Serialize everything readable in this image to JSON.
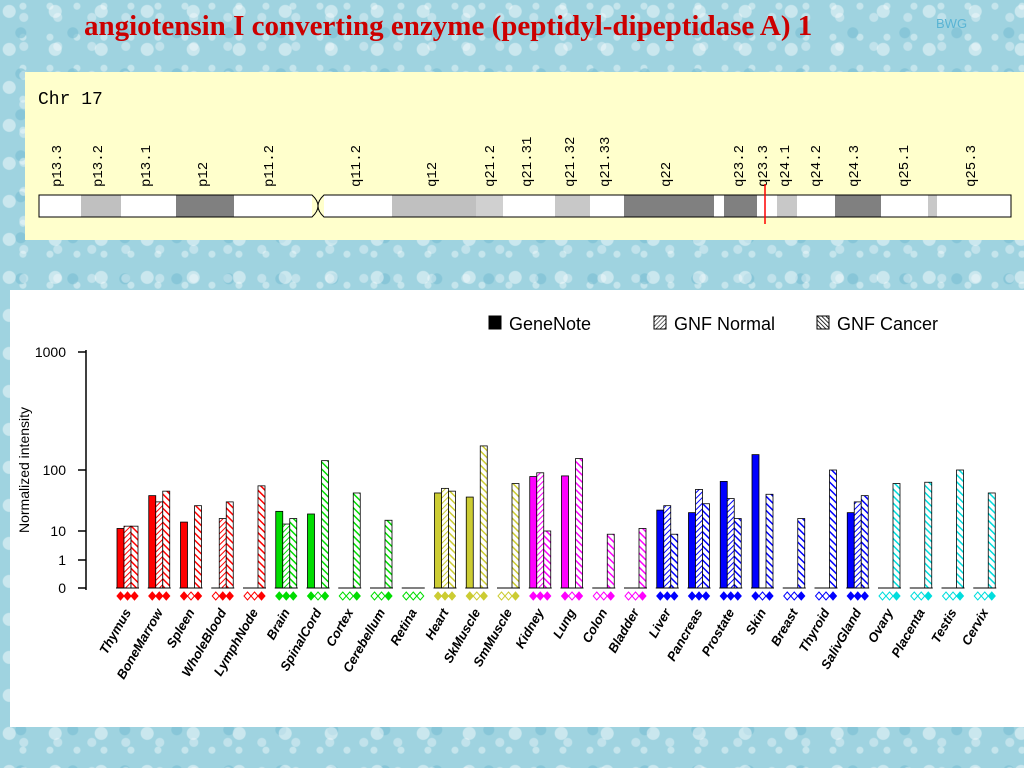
{
  "title": "angiotensin I converting enzyme (peptidyl-dipeptidase A) 1",
  "title_tag": "BWG",
  "chromosome": {
    "label": "Chr 17",
    "bands": [
      {
        "name": "p13.3",
        "x0": 39,
        "x1": 81,
        "shade": "#ffffff"
      },
      {
        "name": "p13.2",
        "x0": 81,
        "x1": 121,
        "shade": "#c0c0c0"
      },
      {
        "name": "p13.1",
        "x0": 121,
        "x1": 176,
        "shade": "#ffffff"
      },
      {
        "name": "p12",
        "x0": 176,
        "x1": 234,
        "shade": "#808080"
      },
      {
        "name": "p11.2",
        "x0": 234,
        "x1": 312,
        "shade": "#ffffff"
      },
      {
        "name": "q11.2",
        "x0": 324,
        "x1": 392,
        "shade": "#ffffff"
      },
      {
        "name": "q12",
        "x0": 392,
        "x1": 476,
        "shade": "#c0c0c0"
      },
      {
        "name": "q21.2",
        "x0": 476,
        "x1": 503,
        "shade": "#d0d0d0"
      },
      {
        "name": "q21.31",
        "x0": 503,
        "x1": 555,
        "shade": "#ffffff"
      },
      {
        "name": "q21.32",
        "x0": 555,
        "x1": 590,
        "shade": "#c8c8c8"
      },
      {
        "name": "q21.33",
        "x0": 590,
        "x1": 624,
        "shade": "#ffffff"
      },
      {
        "name": "q22",
        "x0": 624,
        "x1": 714,
        "shade": "#808080"
      },
      {
        "name": "",
        "x0": 714,
        "x1": 724,
        "shade": "#ffffff"
      },
      {
        "name": "q23.2",
        "x0": 724,
        "x1": 757,
        "shade": "#808080"
      },
      {
        "name": "q23.3",
        "x0": 757,
        "x1": 777,
        "shade": "#ffffff"
      },
      {
        "name": "q24.1",
        "x0": 777,
        "x1": 797,
        "shade": "#c8c8c8"
      },
      {
        "name": "q24.2",
        "x0": 797,
        "x1": 835,
        "shade": "#ffffff"
      },
      {
        "name": "q24.3",
        "x0": 835,
        "x1": 881,
        "shade": "#808080"
      },
      {
        "name": "q25.1",
        "x0": 881,
        "x1": 928,
        "shade": "#ffffff"
      },
      {
        "name": "",
        "x0": 928,
        "x1": 937,
        "shade": "#c8c8c8"
      },
      {
        "name": "q25.3",
        "x0": 937,
        "x1": 1011,
        "shade": "#ffffff"
      }
    ],
    "label_positions": [
      56,
      97,
      145,
      202,
      268,
      355,
      431,
      489,
      526,
      569,
      604,
      665,
      738,
      762,
      784,
      815,
      853,
      903,
      970
    ],
    "marker_x": 765
  },
  "chart_data": {
    "type": "bar",
    "ylabel": "Normalized intensity",
    "yticks": [
      "0",
      "1",
      "10",
      "100",
      "1000"
    ],
    "legend": [
      "GeneNote",
      "GNF Normal",
      "GNF Cancer"
    ],
    "legend_position": "top-right",
    "categories": [
      "Thymus",
      "BoneMarrow",
      "Spleen",
      "WholeBlood",
      "LymphNode",
      "Brain",
      "SpinalCord",
      "Cortex",
      "Cerebellum",
      "Retina",
      "Heart",
      "SkMuscle",
      "SmMuscle",
      "Kidney",
      "Lung",
      "Colon",
      "Bladder",
      "Liver",
      "Pancreas",
      "Prostate",
      "Skin",
      "Breast",
      "Thyroid",
      "SalivGland",
      "Ovary",
      "Placenta",
      "Testis",
      "Cervix"
    ],
    "colors": [
      "#ff0000",
      "#ff0000",
      "#ff0000",
      "#ff0000",
      "#ff0000",
      "#00dd00",
      "#00dd00",
      "#00dd00",
      "#00dd00",
      "#00dd00",
      "#cccc33",
      "#cccc33",
      "#cccc33",
      "#ff00ff",
      "#ff00ff",
      "#ff00ff",
      "#ff00ff",
      "#0000ff",
      "#0000ff",
      "#0000ff",
      "#0000ff",
      "#0000ff",
      "#0000ff",
      "#0000ff",
      "#00dddd",
      "#00dddd",
      "#00dddd",
      "#00dddd"
    ],
    "series": [
      {
        "name": "GeneNote",
        "values": [
          11,
          38,
          14,
          0,
          0,
          21,
          19,
          0,
          0,
          0,
          42,
          36,
          0,
          78,
          80,
          0,
          0,
          22,
          20,
          65,
          135,
          0,
          0,
          20,
          0,
          0,
          0,
          0
        ]
      },
      {
        "name": "GNF Normal",
        "values": [
          12,
          30,
          0,
          16,
          0,
          13,
          0,
          0,
          0,
          0,
          50,
          0,
          0,
          90,
          0,
          0,
          0,
          26,
          48,
          34,
          0,
          0,
          0,
          30,
          0,
          0,
          0,
          0
        ]
      },
      {
        "name": "GNF Cancer",
        "values": [
          12,
          45,
          26,
          30,
          55,
          16,
          120,
          42,
          15,
          0,
          45,
          160,
          60,
          10,
          125,
          9,
          11,
          9,
          28,
          16,
          40,
          16,
          100,
          38,
          60,
          63,
          100,
          42
        ]
      }
    ],
    "marker_fill": [
      [
        true,
        true,
        true
      ],
      [
        true,
        true,
        true
      ],
      [
        true,
        false,
        true
      ],
      [
        false,
        true,
        true
      ],
      [
        false,
        false,
        true
      ],
      [
        true,
        true,
        true
      ],
      [
        true,
        false,
        true
      ],
      [
        false,
        false,
        true
      ],
      [
        false,
        false,
        true
      ],
      [
        false,
        false,
        false
      ],
      [
        true,
        true,
        true
      ],
      [
        true,
        false,
        true
      ],
      [
        false,
        false,
        true
      ],
      [
        true,
        true,
        true
      ],
      [
        true,
        false,
        true
      ],
      [
        false,
        false,
        true
      ],
      [
        false,
        false,
        true
      ],
      [
        true,
        true,
        true
      ],
      [
        true,
        true,
        true
      ],
      [
        true,
        true,
        true
      ],
      [
        true,
        false,
        true
      ],
      [
        false,
        false,
        true
      ],
      [
        false,
        false,
        true
      ],
      [
        true,
        true,
        true
      ],
      [
        false,
        false,
        true
      ],
      [
        false,
        false,
        true
      ],
      [
        false,
        false,
        true
      ],
      [
        false,
        false,
        true
      ]
    ]
  }
}
